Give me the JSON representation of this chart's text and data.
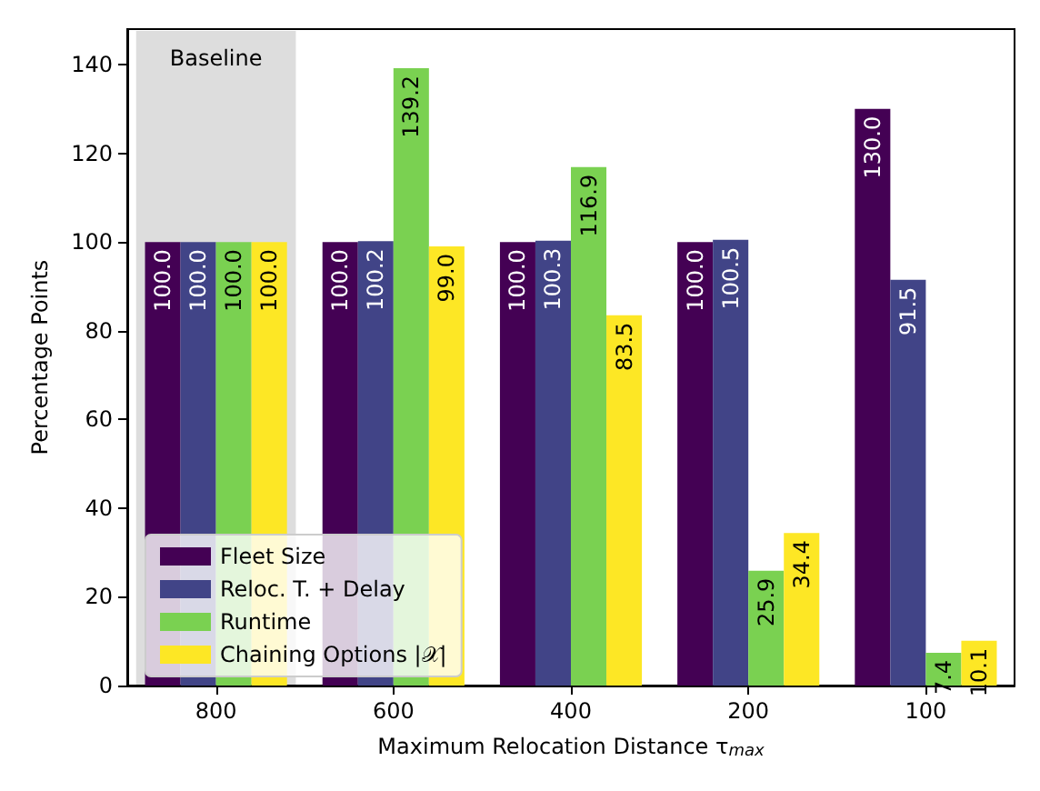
{
  "chart_data": {
    "type": "bar",
    "xlabel": "Maximum Relocation Distance τ$_{max}$",
    "ylabel": "Percentage Points",
    "categories": [
      "800",
      "600",
      "400",
      "200",
      "100"
    ],
    "series": [
      {
        "name": "Fleet Size",
        "color": "#440154",
        "values": [
          100.0,
          100.0,
          100.0,
          100.0,
          130.0
        ],
        "value_labels": [
          "100.0",
          "100.0",
          "100.0",
          "100.0",
          "130.0"
        ]
      },
      {
        "name": "Reloc. T. + Delay",
        "color": "#414487",
        "values": [
          100.0,
          100.2,
          100.3,
          100.5,
          91.5
        ],
        "value_labels": [
          "100.0",
          "100.2",
          "100.3",
          "100.5",
          "91.5"
        ]
      },
      {
        "name": "Runtime",
        "color": "#7ad151",
        "values": [
          100.0,
          139.2,
          116.9,
          25.9,
          7.4
        ],
        "value_labels": [
          "100.0",
          "139.2",
          "116.9",
          "25.9",
          "7.4"
        ]
      },
      {
        "name": "Chaining Options |𝒳|",
        "color": "#fde725",
        "values": [
          100.0,
          99.0,
          83.5,
          34.4,
          10.1
        ],
        "value_labels": [
          "100.0",
          "99.0",
          "83.5",
          "34.4",
          "10.1"
        ]
      }
    ],
    "ylim": [
      0,
      148
    ],
    "yticks": [
      0,
      20,
      40,
      60,
      80,
      100,
      120,
      140
    ],
    "bands": [
      {
        "axis": "x",
        "from": "800",
        "to": "800",
        "label": "Baseline",
        "color": "#dddddd"
      }
    ],
    "legend": "bottom left"
  }
}
